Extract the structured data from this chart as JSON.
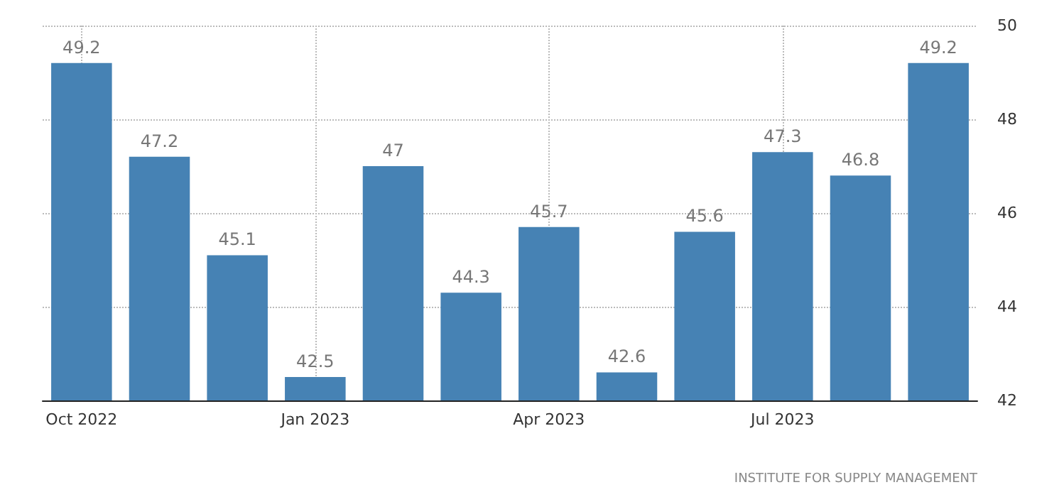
{
  "chart_data": {
    "type": "bar",
    "categories": [
      "Oct 2022",
      null,
      null,
      "Jan 2023",
      null,
      null,
      "Apr 2023",
      null,
      null,
      "Jul 2023",
      null,
      null
    ],
    "values": [
      49.2,
      47.2,
      45.1,
      42.5,
      47,
      44.3,
      45.7,
      42.6,
      45.6,
      47.3,
      46.8,
      49.2
    ],
    "color": "#4682b4",
    "ylim": [
      42,
      50
    ],
    "yticks": [
      42,
      44,
      46,
      48,
      50
    ],
    "grid": true,
    "data_labels": true,
    "annotations": [
      "INSTITUTE FOR SUPPLY MANAGEMENT"
    ]
  }
}
